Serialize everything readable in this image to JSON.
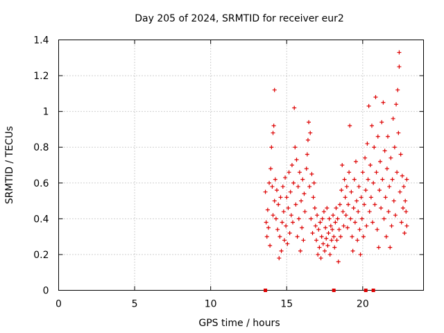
{
  "chart_data": {
    "type": "scatter",
    "title": "Day 205 of 2024, SRMTID for receiver eur2",
    "xlabel": "GPS time / hours",
    "ylabel": "SRMTID / TECUs",
    "xlim": [
      0,
      24
    ],
    "ylim": [
      0,
      1.4
    ],
    "x_ticks": [
      0,
      5,
      10,
      15,
      20
    ],
    "y_ticks": [
      0,
      0.2,
      0.4,
      0.6,
      0.8,
      1,
      1.2,
      1.4
    ],
    "x_tick_labels": [
      "0",
      "5",
      "10",
      "15",
      "20"
    ],
    "y_tick_labels": [
      "0",
      "0.2",
      "0.4",
      "0.6",
      "0.8",
      "1",
      "1.2",
      "1.4"
    ],
    "grid": true,
    "series_color": "#ff0000",
    "marker_color": "#dd0000",
    "series": [
      {
        "name": "SRMTID",
        "points": [
          [
            13.6,
            0.55
          ],
          [
            13.65,
            0.38
          ],
          [
            13.7,
            0.3
          ],
          [
            13.75,
            0.45
          ],
          [
            13.8,
            0.35
          ],
          [
            13.85,
            0.6
          ],
          [
            13.9,
            0.25
          ],
          [
            13.95,
            0.68
          ],
          [
            14.0,
            0.8
          ],
          [
            14.05,
            0.58
          ],
          [
            14.1,
            0.88
          ],
          [
            14.1,
            0.42
          ],
          [
            14.15,
            0.92
          ],
          [
            14.2,
            1.12
          ],
          [
            14.2,
            0.5
          ],
          [
            14.25,
            0.62
          ],
          [
            14.3,
            0.4
          ],
          [
            14.35,
            0.56
          ],
          [
            14.4,
            0.34
          ],
          [
            14.45,
            0.48
          ],
          [
            14.5,
            0.18
          ],
          [
            14.55,
            0.3
          ],
          [
            14.6,
            0.52
          ],
          [
            14.65,
            0.22
          ],
          [
            14.7,
            0.38
          ],
          [
            14.75,
            0.58
          ],
          [
            14.8,
            0.44
          ],
          [
            14.85,
            0.28
          ],
          [
            14.9,
            0.63
          ],
          [
            14.95,
            0.36
          ],
          [
            15.0,
            0.52
          ],
          [
            15.05,
            0.26
          ],
          [
            15.1,
            0.46
          ],
          [
            15.15,
            0.66
          ],
          [
            15.2,
            0.32
          ],
          [
            15.25,
            0.55
          ],
          [
            15.3,
            0.42
          ],
          [
            15.35,
            0.7
          ],
          [
            15.4,
            0.38
          ],
          [
            15.45,
            0.6
          ],
          [
            15.5,
            1.02
          ],
          [
            15.55,
            0.8
          ],
          [
            15.6,
            0.48
          ],
          [
            15.65,
            0.73
          ],
          [
            15.7,
            0.3
          ],
          [
            15.75,
            0.58
          ],
          [
            15.8,
            0.4
          ],
          [
            15.85,
            0.66
          ],
          [
            15.9,
            0.22
          ],
          [
            15.95,
            0.5
          ],
          [
            16.0,
            0.35
          ],
          [
            16.05,
            0.62
          ],
          [
            16.1,
            0.28
          ],
          [
            16.15,
            0.54
          ],
          [
            16.2,
            0.44
          ],
          [
            16.3,
            0.68
          ],
          [
            16.35,
            0.76
          ],
          [
            16.4,
            0.84
          ],
          [
            16.45,
            0.94
          ],
          [
            16.5,
            0.58
          ],
          [
            16.55,
            0.88
          ],
          [
            16.6,
            0.4
          ],
          [
            16.65,
            0.65
          ],
          [
            16.7,
            0.32
          ],
          [
            16.75,
            0.52
          ],
          [
            16.8,
            0.6
          ],
          [
            16.85,
            0.46
          ],
          [
            16.9,
            0.36
          ],
          [
            16.95,
            0.28
          ],
          [
            17.0,
            0.42
          ],
          [
            17.05,
            0.2
          ],
          [
            17.1,
            0.34
          ],
          [
            17.15,
            0.24
          ],
          [
            17.2,
            0.38
          ],
          [
            17.25,
            0.18
          ],
          [
            17.3,
            0.3
          ],
          [
            17.35,
            0.4
          ],
          [
            17.4,
            0.26
          ],
          [
            17.45,
            0.44
          ],
          [
            17.5,
            0.22
          ],
          [
            17.55,
            0.35
          ],
          [
            17.6,
            0.29
          ],
          [
            17.65,
            0.46
          ],
          [
            17.7,
            0.25
          ],
          [
            17.75,
            0.32
          ],
          [
            17.8,
            0.4
          ],
          [
            17.85,
            0.2
          ],
          [
            17.9,
            0.36
          ],
          [
            17.95,
            0.28
          ],
          [
            18.0,
            0.34
          ],
          [
            18.05,
            0.42
          ],
          [
            18.1,
            0.3
          ],
          [
            18.15,
            0.24
          ],
          [
            18.2,
            0.38
          ],
          [
            18.25,
            0.46
          ],
          [
            18.3,
            0.28
          ],
          [
            18.35,
            0.4
          ],
          [
            18.4,
            0.16
          ],
          [
            18.45,
            0.34
          ],
          [
            18.5,
            0.48
          ],
          [
            18.55,
            0.3
          ],
          [
            18.6,
            0.56
          ],
          [
            18.65,
            0.7
          ],
          [
            18.7,
            0.44
          ],
          [
            18.75,
            0.36
          ],
          [
            18.8,
            0.62
          ],
          [
            18.85,
            0.52
          ],
          [
            18.9,
            0.42
          ],
          [
            18.95,
            0.58
          ],
          [
            19.0,
            0.35
          ],
          [
            19.05,
            0.48
          ],
          [
            19.1,
            0.66
          ],
          [
            19.15,
            0.92
          ],
          [
            19.2,
            0.4
          ],
          [
            19.25,
            0.55
          ],
          [
            19.3,
            0.3
          ],
          [
            19.35,
            0.22
          ],
          [
            19.4,
            0.46
          ],
          [
            19.45,
            0.62
          ],
          [
            19.5,
            0.38
          ],
          [
            19.55,
            0.72
          ],
          [
            19.6,
            0.5
          ],
          [
            19.65,
            0.28
          ],
          [
            19.7,
            0.44
          ],
          [
            19.75,
            0.58
          ],
          [
            19.8,
            0.34
          ],
          [
            19.85,
            0.2
          ],
          [
            19.9,
            0.52
          ],
          [
            19.95,
            0.4
          ],
          [
            20.0,
            0.66
          ],
          [
            20.05,
            0.3
          ],
          [
            20.1,
            0.48
          ],
          [
            20.15,
            0.74
          ],
          [
            20.2,
            0.56
          ],
          [
            20.25,
            0.36
          ],
          [
            20.3,
            0.82
          ],
          [
            20.35,
            0.62
          ],
          [
            20.4,
            1.03
          ],
          [
            20.45,
            0.44
          ],
          [
            20.5,
            0.7
          ],
          [
            20.55,
            0.52
          ],
          [
            20.6,
            0.92
          ],
          [
            20.65,
            0.38
          ],
          [
            20.7,
            0.6
          ],
          [
            20.75,
            0.8
          ],
          [
            20.8,
            0.48
          ],
          [
            20.85,
            1.08
          ],
          [
            20.9,
            0.66
          ],
          [
            20.95,
            0.34
          ],
          [
            21.0,
            0.86
          ],
          [
            21.05,
            0.24
          ],
          [
            21.1,
            0.56
          ],
          [
            21.15,
            0.72
          ],
          [
            21.2,
            0.46
          ],
          [
            21.25,
            0.94
          ],
          [
            21.3,
            0.62
          ],
          [
            21.35,
            1.05
          ],
          [
            21.4,
            0.4
          ],
          [
            21.45,
            0.78
          ],
          [
            21.5,
            0.52
          ],
          [
            21.55,
            0.3
          ],
          [
            21.6,
            0.68
          ],
          [
            21.65,
            0.86
          ],
          [
            21.7,
            0.44
          ],
          [
            21.75,
            0.58
          ],
          [
            21.8,
            0.24
          ],
          [
            21.85,
            0.74
          ],
          [
            21.9,
            0.36
          ],
          [
            21.95,
            0.62
          ],
          [
            22.0,
            0.96
          ],
          [
            22.05,
            0.5
          ],
          [
            22.1,
            0.8
          ],
          [
            22.15,
            0.42
          ],
          [
            22.2,
            1.04
          ],
          [
            22.25,
            0.66
          ],
          [
            22.3,
            1.12
          ],
          [
            22.35,
            0.88
          ],
          [
            22.4,
            1.33
          ],
          [
            22.4,
            1.25
          ],
          [
            22.45,
            0.55
          ],
          [
            22.5,
            0.76
          ],
          [
            22.55,
            0.38
          ],
          [
            22.6,
            0.64
          ],
          [
            22.65,
            0.46
          ],
          [
            22.7,
            0.58
          ],
          [
            22.75,
            0.32
          ],
          [
            22.8,
            0.5
          ],
          [
            22.85,
            0.44
          ],
          [
            22.9,
            0.62
          ],
          [
            22.9,
            0.36
          ]
        ]
      }
    ],
    "zero_markers_x": [
      13.6,
      18.1,
      20.2,
      20.7
    ]
  }
}
